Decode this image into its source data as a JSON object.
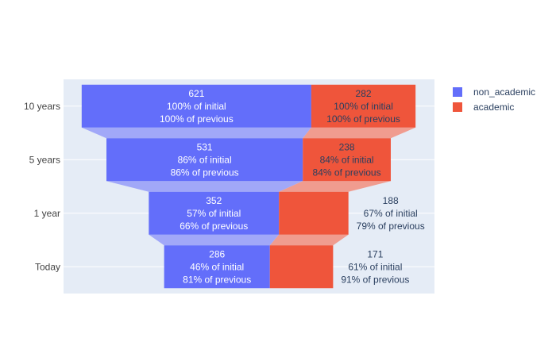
{
  "chart_data": {
    "type": "funnel",
    "title": "",
    "xlabel": "",
    "ylabel": "",
    "categories": [
      "10 years",
      "5 years",
      "1 year",
      "Today"
    ],
    "series": [
      {
        "name": "non_academic",
        "color": "#636efa",
        "connector_color": "#a1a8f8",
        "values": [
          621,
          531,
          352,
          286
        ],
        "labels": [
          [
            "621",
            "100% of initial",
            "100% of previous"
          ],
          [
            "531",
            "86% of initial",
            "86% of previous"
          ],
          [
            "352",
            "57% of initial",
            "66% of previous"
          ],
          [
            "286",
            "46% of initial",
            "81% of previous"
          ]
        ]
      },
      {
        "name": "academic",
        "color": "#ef553b",
        "connector_color": "#f09c8f",
        "values": [
          282,
          238,
          188,
          171
        ],
        "labels": [
          [
            "282",
            "100% of initial",
            "100% of previous"
          ],
          [
            "238",
            "84% of initial",
            "84% of previous"
          ],
          [
            "188",
            "67% of initial",
            "79% of previous"
          ],
          [
            "171",
            "61% of initial",
            "91% of previous"
          ]
        ]
      }
    ],
    "legend_position": "top-right",
    "grid": true
  },
  "colors": {
    "plot_bg": "#e5ecf6",
    "grid": "#ffffff"
  }
}
